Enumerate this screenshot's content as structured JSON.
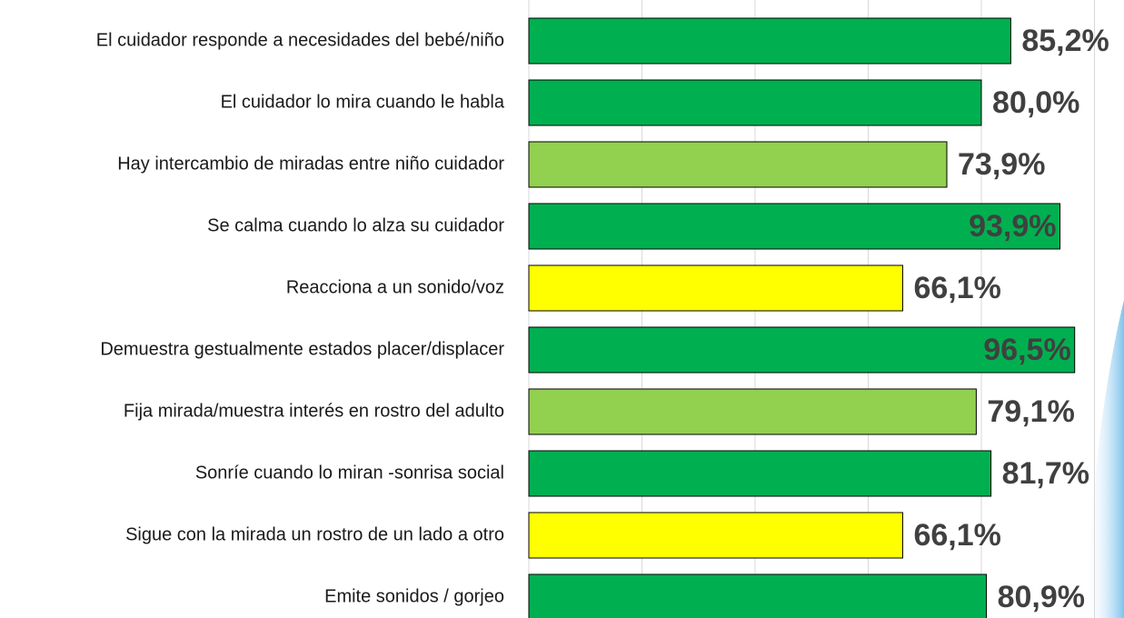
{
  "chart_data": {
    "type": "barh",
    "categories": [
      "El cuidador responde a necesidades del bebé/niño",
      "El cuidador lo mira cuando le habla",
      "Hay intercambio de miradas entre niño cuidador",
      "Se calma cuando lo alza su cuidador",
      "Reacciona a un sonido/voz",
      "Demuestra gestualmente estados placer/displacer",
      "Fija mirada/muestra interés en rostro del adulto",
      "Sonríe cuando lo miran -sonrisa social",
      "Sigue con la mirada un rostro de un lado a otro",
      "Emite sonidos / gorjeo"
    ],
    "values": [
      85.2,
      80.0,
      73.9,
      93.9,
      66.1,
      96.5,
      79.1,
      81.7,
      66.1,
      80.9
    ],
    "value_labels": [
      "85,2%",
      "80,0%",
      "73,9%",
      "93,9%",
      "66,1%",
      "96,5%",
      "79,1%",
      "81,7%",
      "66,1%",
      "80,9%"
    ],
    "colors": [
      "#00b050",
      "#00b050",
      "#92d050",
      "#00b050",
      "#ffff00",
      "#00b050",
      "#92d050",
      "#00b050",
      "#ffff00",
      "#00b050"
    ],
    "xlim": [
      0,
      100
    ],
    "xticks": [
      0,
      20,
      40,
      60,
      80,
      100
    ],
    "grid": true
  }
}
